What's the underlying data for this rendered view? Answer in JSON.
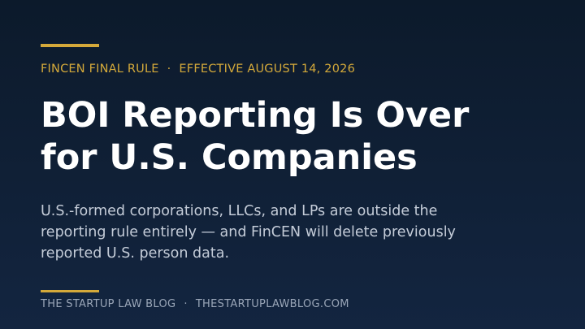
{
  "header": {
    "kicker": [
      "FINCEN FINAL RULE",
      "EFFECTIVE AUGUST 14, 2026"
    ],
    "title_lines": [
      "BOI Reporting Is Over",
      "for U.S. Companies"
    ]
  },
  "body": {
    "lines": [
      "U.S.-formed corporations, LLCs, and LPs are outside the",
      "reporting rule entirely — and FinCEN will delete previously",
      "reported U.S. person data."
    ]
  },
  "footer": {
    "items": [
      "THE STARTUP LAW BLOG",
      "THESTARTUPLAWBLOG.COM"
    ]
  }
}
